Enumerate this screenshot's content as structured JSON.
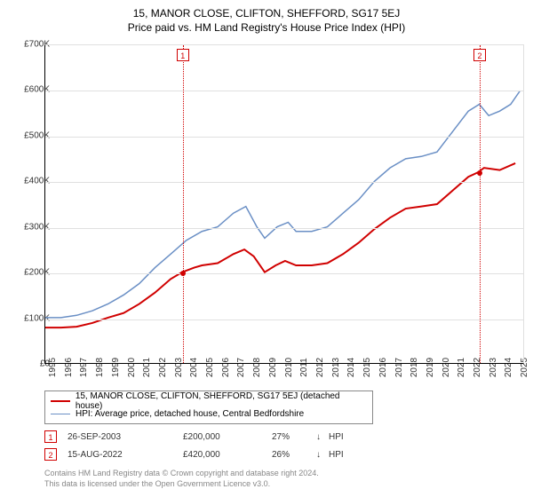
{
  "title": "15, MANOR CLOSE, CLIFTON, SHEFFORD, SG17 5EJ",
  "subtitle": "Price paid vs. HM Land Registry's House Price Index (HPI)",
  "chart": {
    "type": "line",
    "background_color": "#ffffff",
    "grid_color": "#e0e0e0",
    "axis_color": "#000000",
    "x_min": 1995,
    "x_max": 2025.5,
    "y_min": 0,
    "y_max": 700000,
    "y_ticks": [
      0,
      100000,
      200000,
      300000,
      400000,
      500000,
      600000,
      700000
    ],
    "y_tick_labels": [
      "£0",
      "£100K",
      "£200K",
      "£300K",
      "£400K",
      "£500K",
      "£600K",
      "£700K"
    ],
    "x_ticks": [
      1995,
      1996,
      1997,
      1998,
      1999,
      2000,
      2001,
      2002,
      2003,
      2004,
      2005,
      2006,
      2007,
      2008,
      2009,
      2010,
      2011,
      2012,
      2013,
      2014,
      2015,
      2016,
      2017,
      2018,
      2019,
      2020,
      2021,
      2022,
      2023,
      2024,
      2025
    ],
    "label_fontsize": 10,
    "series": [
      {
        "name": "property",
        "color": "#d00000",
        "line_width": 2,
        "points": [
          [
            1995.0,
            78000
          ],
          [
            1996.0,
            78000
          ],
          [
            1997.0,
            80000
          ],
          [
            1998.0,
            88000
          ],
          [
            1999.0,
            100000
          ],
          [
            2000.0,
            110000
          ],
          [
            2001.0,
            130000
          ],
          [
            2002.0,
            155000
          ],
          [
            2003.0,
            185000
          ],
          [
            2003.74,
            200000
          ],
          [
            2004.5,
            210000
          ],
          [
            2005.0,
            215000
          ],
          [
            2006.0,
            220000
          ],
          [
            2007.0,
            240000
          ],
          [
            2007.7,
            250000
          ],
          [
            2008.3,
            235000
          ],
          [
            2009.0,
            200000
          ],
          [
            2009.7,
            215000
          ],
          [
            2010.3,
            225000
          ],
          [
            2011.0,
            215000
          ],
          [
            2012.0,
            215000
          ],
          [
            2013.0,
            220000
          ],
          [
            2014.0,
            240000
          ],
          [
            2015.0,
            265000
          ],
          [
            2016.0,
            295000
          ],
          [
            2017.0,
            320000
          ],
          [
            2018.0,
            340000
          ],
          [
            2019.0,
            345000
          ],
          [
            2020.0,
            350000
          ],
          [
            2021.0,
            380000
          ],
          [
            2022.0,
            410000
          ],
          [
            2022.62,
            420000
          ],
          [
            2023.0,
            430000
          ],
          [
            2024.0,
            425000
          ],
          [
            2025.0,
            440000
          ]
        ]
      },
      {
        "name": "hpi",
        "color": "#6a8fc5",
        "line_width": 1.5,
        "points": [
          [
            1995.0,
            100000
          ],
          [
            1996.0,
            100000
          ],
          [
            1997.0,
            105000
          ],
          [
            1998.0,
            115000
          ],
          [
            1999.0,
            130000
          ],
          [
            2000.0,
            150000
          ],
          [
            2001.0,
            175000
          ],
          [
            2002.0,
            210000
          ],
          [
            2003.0,
            240000
          ],
          [
            2004.0,
            270000
          ],
          [
            2005.0,
            290000
          ],
          [
            2006.0,
            300000
          ],
          [
            2007.0,
            330000
          ],
          [
            2007.8,
            345000
          ],
          [
            2008.5,
            300000
          ],
          [
            2009.0,
            275000
          ],
          [
            2009.8,
            300000
          ],
          [
            2010.5,
            310000
          ],
          [
            2011.0,
            290000
          ],
          [
            2012.0,
            290000
          ],
          [
            2013.0,
            300000
          ],
          [
            2014.0,
            330000
          ],
          [
            2015.0,
            360000
          ],
          [
            2016.0,
            400000
          ],
          [
            2017.0,
            430000
          ],
          [
            2018.0,
            450000
          ],
          [
            2019.0,
            455000
          ],
          [
            2020.0,
            465000
          ],
          [
            2021.0,
            510000
          ],
          [
            2022.0,
            555000
          ],
          [
            2022.7,
            570000
          ],
          [
            2023.3,
            545000
          ],
          [
            2024.0,
            555000
          ],
          [
            2024.7,
            570000
          ],
          [
            2025.3,
            600000
          ]
        ]
      }
    ],
    "markers": [
      {
        "n": "1",
        "x": 2003.74,
        "y": 200000
      },
      {
        "n": "2",
        "x": 2022.62,
        "y": 420000
      }
    ],
    "marker_color": "#d00000"
  },
  "legend": {
    "items": [
      {
        "color": "#d00000",
        "width": 2,
        "label": "15, MANOR CLOSE, CLIFTON, SHEFFORD, SG17 5EJ (detached house)"
      },
      {
        "color": "#6a8fc5",
        "width": 1.5,
        "label": "HPI: Average price, detached house, Central Bedfordshire"
      }
    ]
  },
  "sales": [
    {
      "n": "1",
      "date": "26-SEP-2003",
      "price": "£200,000",
      "pct": "27%",
      "arrow": "↓",
      "ref": "HPI"
    },
    {
      "n": "2",
      "date": "15-AUG-2022",
      "price": "£420,000",
      "pct": "26%",
      "arrow": "↓",
      "ref": "HPI"
    }
  ],
  "footer": {
    "line1": "Contains HM Land Registry data © Crown copyright and database right 2024.",
    "line2": "This data is licensed under the Open Government Licence v3.0."
  }
}
